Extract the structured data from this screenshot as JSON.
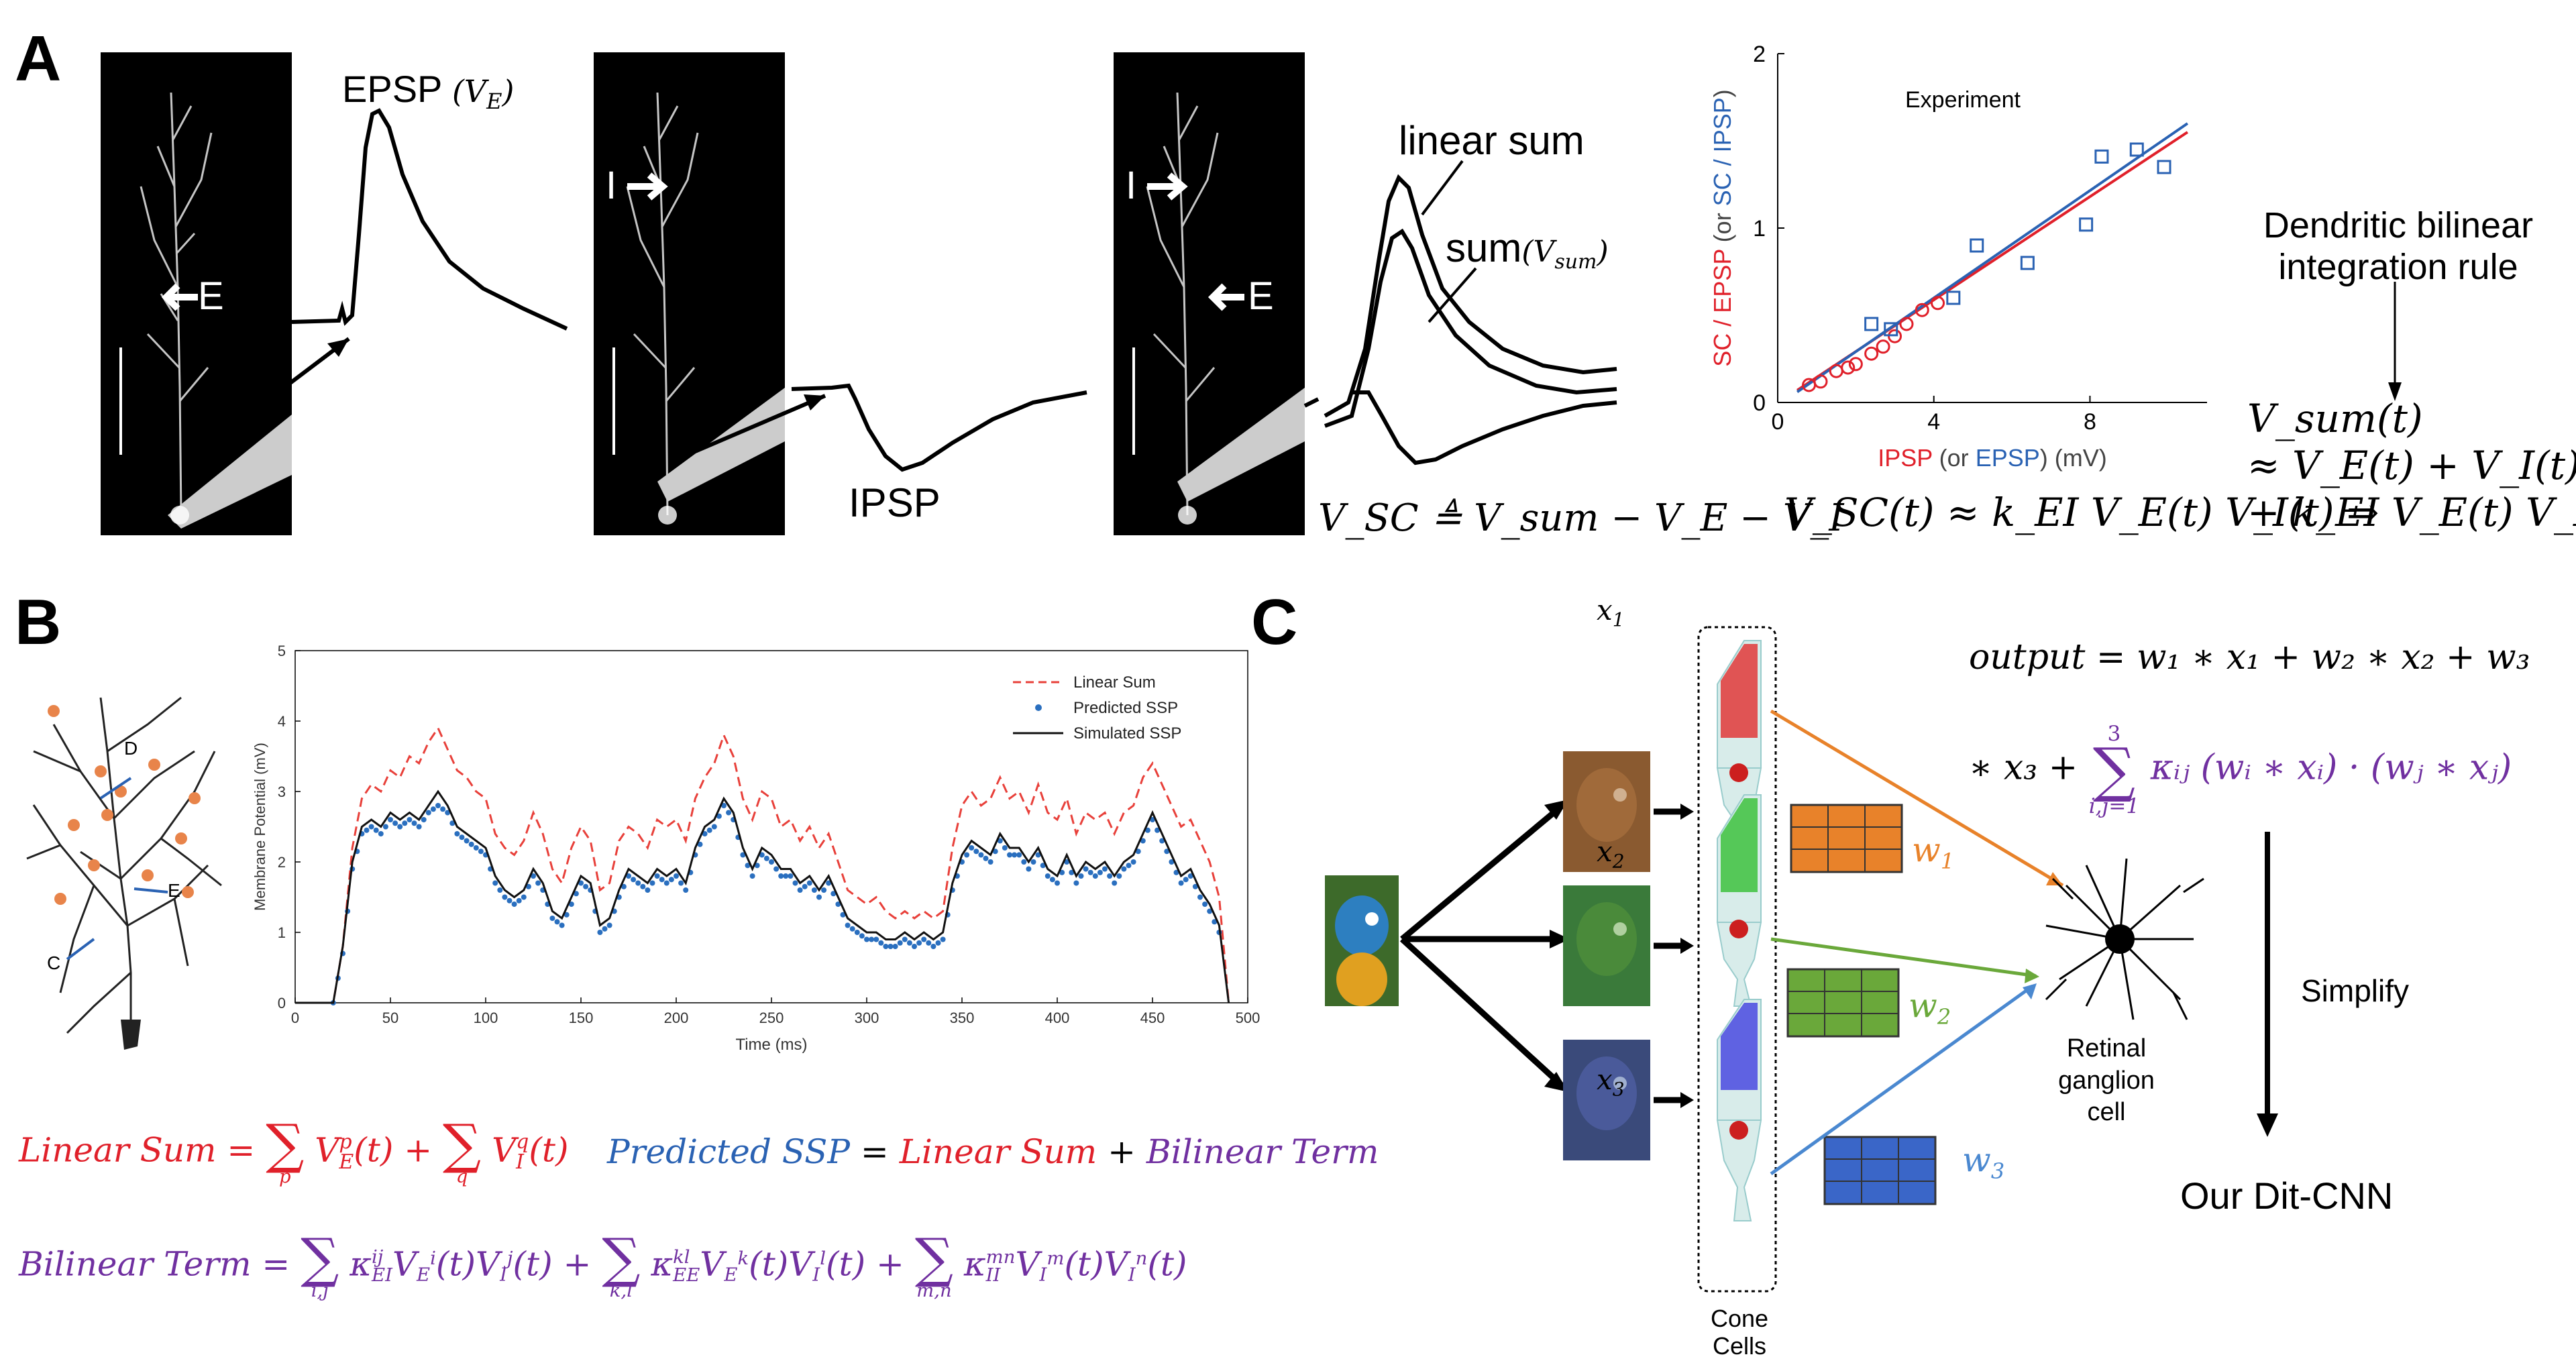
{
  "panel_letters": [
    "A",
    "B",
    "C"
  ],
  "panel_a": {
    "labels": {
      "epsp": "EPSP",
      "epsp_sym": "(V",
      "epsp_sub": "E",
      "epsp_close": ")",
      "ipsp": "IPSP",
      "linear_sum": "linear sum",
      "sum": "sum",
      "sum_sym": "(V",
      "sum_sub": "sum",
      "sum_close": ")",
      "marker_e": "E",
      "marker_i": "I"
    },
    "vsc_def": "V_SC ≜ V_sum − V_E − V_I",
    "vsc_approx": "V_SC(t) ≈ k_EI V_E(t) V_I(t) ⇒",
    "rule_title_1": "Dendritic bilinear",
    "rule_title_2": "integration rule",
    "rule_line1": "V_sum(t)",
    "rule_line2": "≈ V_E(t) + V_I(t)",
    "rule_line3": "+ k_EI V_E(t) V_I(t)",
    "scatter": {
      "title": "Experiment",
      "ylabel_red": "SC / EPSP",
      "ylabel_blue_paren_open": "(or ",
      "ylabel_blue": "SC / IPSP",
      "ylabel_blue_paren_close": ")",
      "xlabel_red": "IPSP",
      "xlabel_blue_paren_open": " (or ",
      "xlabel_blue": "EPSP",
      "xlabel_unit": ")  (mV)",
      "xticks": [
        "0",
        "4",
        "8"
      ],
      "yticks": [
        "0",
        "1",
        "2"
      ]
    }
  },
  "chart_data": [
    {
      "type": "scatter",
      "title": "Experiment",
      "xlabel": "IPSP (or EPSP) (mV)",
      "ylabel": "SC / EPSP (or SC / IPSP)",
      "xlim": [
        0,
        11
      ],
      "ylim": [
        0,
        2
      ],
      "series": [
        {
          "name": "SC / EPSP",
          "color": "#e0202a",
          "marker": "circle",
          "x": [
            0.8,
            1.1,
            1.5,
            1.8,
            2.0,
            2.4,
            2.7,
            3.0,
            3.3,
            3.7,
            4.1
          ],
          "y": [
            0.1,
            0.12,
            0.18,
            0.2,
            0.22,
            0.28,
            0.32,
            0.38,
            0.45,
            0.53,
            0.57
          ]
        },
        {
          "name": "SC / IPSP",
          "color": "#2a62b3",
          "marker": "square",
          "x": [
            2.4,
            2.9,
            4.5,
            5.1,
            6.4,
            7.9,
            8.3,
            9.2,
            9.9
          ],
          "y": [
            0.45,
            0.42,
            0.6,
            0.9,
            0.8,
            1.02,
            1.41,
            1.45,
            1.35
          ]
        }
      ],
      "fits": [
        {
          "color": "#e0202a",
          "x": [
            0.5,
            10.5
          ],
          "y": [
            0.07,
            1.55
          ]
        },
        {
          "color": "#2a62b3",
          "x": [
            0.5,
            10.5
          ],
          "y": [
            0.06,
            1.6
          ]
        }
      ]
    },
    {
      "type": "line",
      "xlabel": "Time (ms)",
      "ylabel": "Membrane Potential (mV)",
      "xlim": [
        0,
        500
      ],
      "ylim": [
        0,
        5
      ],
      "xticks": [
        0,
        50,
        100,
        150,
        200,
        250,
        300,
        350,
        400,
        450,
        500
      ],
      "yticks": [
        0,
        1,
        2,
        3,
        4,
        5
      ],
      "x": [
        0,
        20,
        25,
        30,
        35,
        40,
        45,
        50,
        55,
        60,
        65,
        70,
        75,
        80,
        85,
        90,
        95,
        100,
        105,
        110,
        115,
        120,
        125,
        130,
        135,
        140,
        145,
        150,
        155,
        160,
        165,
        170,
        175,
        180,
        185,
        190,
        195,
        200,
        205,
        210,
        215,
        220,
        225,
        230,
        235,
        240,
        245,
        250,
        255,
        260,
        265,
        270,
        275,
        280,
        285,
        290,
        295,
        300,
        305,
        310,
        315,
        320,
        325,
        330,
        335,
        340,
        345,
        350,
        355,
        360,
        365,
        370,
        375,
        380,
        385,
        390,
        395,
        400,
        405,
        410,
        415,
        420,
        425,
        430,
        435,
        440,
        445,
        450,
        455,
        460,
        465,
        470,
        475,
        480,
        485,
        490
      ],
      "series": [
        {
          "name": "Linear Sum",
          "color": "#e8403a",
          "style": "dashed",
          "values": [
            0,
            0,
            0.8,
            2.2,
            2.9,
            3.1,
            3.0,
            3.3,
            3.2,
            3.5,
            3.4,
            3.7,
            3.9,
            3.6,
            3.3,
            3.2,
            3.0,
            2.9,
            2.4,
            2.2,
            2.1,
            2.3,
            2.7,
            2.4,
            1.9,
            1.7,
            2.2,
            2.5,
            2.3,
            1.6,
            1.7,
            2.3,
            2.5,
            2.4,
            2.2,
            2.6,
            2.5,
            2.6,
            2.3,
            2.9,
            3.2,
            3.4,
            3.8,
            3.5,
            2.9,
            2.6,
            3.0,
            2.9,
            2.5,
            2.6,
            2.3,
            2.5,
            2.2,
            2.4,
            2.0,
            1.6,
            1.5,
            1.4,
            1.5,
            1.3,
            1.2,
            1.3,
            1.2,
            1.3,
            1.2,
            1.3,
            2.2,
            2.8,
            3.0,
            2.8,
            2.9,
            3.2,
            2.9,
            3.0,
            2.7,
            3.1,
            2.7,
            2.6,
            2.9,
            2.4,
            2.7,
            2.6,
            2.7,
            2.4,
            2.7,
            2.8,
            3.2,
            3.4,
            3.1,
            2.8,
            2.5,
            2.6,
            2.3,
            2.0,
            1.5,
            0
          ]
        },
        {
          "name": "Predicted SSP",
          "color": "#2a6fbf",
          "style": "dots",
          "values": [
            0,
            0,
            0.7,
            1.9,
            2.4,
            2.5,
            2.4,
            2.6,
            2.5,
            2.6,
            2.5,
            2.7,
            2.8,
            2.7,
            2.4,
            2.3,
            2.2,
            2.1,
            1.7,
            1.5,
            1.4,
            1.5,
            1.8,
            1.6,
            1.2,
            1.1,
            1.4,
            1.7,
            1.6,
            1.0,
            1.1,
            1.5,
            1.8,
            1.7,
            1.6,
            1.8,
            1.7,
            1.8,
            1.6,
            2.1,
            2.4,
            2.5,
            2.8,
            2.6,
            2.1,
            1.8,
            2.1,
            2.0,
            1.8,
            1.8,
            1.6,
            1.7,
            1.5,
            1.7,
            1.4,
            1.1,
            1.0,
            0.9,
            0.9,
            0.8,
            0.8,
            0.9,
            0.8,
            0.9,
            0.8,
            0.9,
            1.6,
            2.0,
            2.2,
            2.1,
            2.0,
            2.3,
            2.1,
            2.1,
            1.9,
            2.1,
            1.8,
            1.7,
            2.0,
            1.7,
            1.9,
            1.8,
            1.9,
            1.7,
            1.9,
            2.0,
            2.3,
            2.6,
            2.3,
            2.0,
            1.7,
            1.8,
            1.5,
            1.3,
            1.0,
            0
          ]
        },
        {
          "name": "Simulated SSP",
          "color": "#111111",
          "style": "solid",
          "values": [
            0,
            0,
            0.8,
            2.0,
            2.5,
            2.6,
            2.5,
            2.7,
            2.6,
            2.7,
            2.6,
            2.8,
            3.0,
            2.8,
            2.5,
            2.4,
            2.3,
            2.2,
            1.8,
            1.6,
            1.5,
            1.6,
            1.9,
            1.7,
            1.3,
            1.2,
            1.5,
            1.8,
            1.7,
            1.1,
            1.2,
            1.6,
            1.9,
            1.8,
            1.7,
            1.9,
            1.8,
            1.9,
            1.7,
            2.2,
            2.5,
            2.6,
            2.9,
            2.7,
            2.2,
            1.9,
            2.2,
            2.1,
            1.9,
            1.9,
            1.7,
            1.8,
            1.6,
            1.8,
            1.5,
            1.2,
            1.1,
            1.0,
            1.0,
            0.9,
            0.9,
            1.0,
            0.9,
            1.0,
            0.9,
            1.0,
            1.7,
            2.1,
            2.3,
            2.2,
            2.1,
            2.4,
            2.2,
            2.2,
            2.0,
            2.2,
            1.9,
            1.8,
            2.1,
            1.8,
            2.0,
            1.9,
            2.0,
            1.8,
            2.0,
            2.1,
            2.4,
            2.7,
            2.4,
            2.1,
            1.8,
            1.9,
            1.6,
            1.4,
            1.1,
            0
          ]
        }
      ]
    }
  ],
  "panel_b": {
    "neuron_labels": [
      "D",
      "E",
      "C"
    ],
    "legend": [
      "Linear Sum",
      "Predicted SSP",
      "Simulated SSP"
    ],
    "eq1_lhs": "Linear Sum",
    "eq1_eq": "=",
    "eq1_term1": "V",
    "eq1_term1_sup": "p",
    "eq1_term1_sub": "E",
    "eq1_sum1_lim": "p",
    "eq1_term2": "V",
    "eq1_term2_sup": "q",
    "eq1_term2_sub": "I",
    "eq1_sum2_lim": "q",
    "eq1_t": "(t)",
    "eq1_plus": "+",
    "eq2_lhs": "Predicted SSP",
    "eq2_eq": "=",
    "eq2_a": "Linear Sum",
    "eq2_plus": "+",
    "eq2_b": "Bilinear Term",
    "eq3_lhs": "Bilinear Term",
    "eq3_eq": "=",
    "eq3_lims": [
      "i,j",
      "k,l",
      "m,n"
    ],
    "eq3_kappa_sub": [
      "EI",
      "EE",
      "II"
    ],
    "eq3_kappa_sup": [
      "ij",
      "kl",
      "mn"
    ]
  },
  "panel_c": {
    "x_labels": [
      "x",
      "x",
      "x"
    ],
    "x_subs": [
      "1",
      "2",
      "3"
    ],
    "w_labels": [
      "w",
      "w",
      "w"
    ],
    "w_subs": [
      "1",
      "2",
      "3"
    ],
    "w_colors": [
      "#e8822a",
      "#6aa83a",
      "#4a88d0"
    ],
    "cone_label_1": "Cone",
    "cone_label_2": "Cells",
    "ganglion_1": "Retinal",
    "ganglion_2": "ganglion",
    "ganglion_3": "cell",
    "output_line1": "output =  w₁ ∗ x₁ + w₂ ∗ x₂ + w₃",
    "output_line2_a": "∗ x₃ +",
    "output_sum_top": "3",
    "output_sum_bottom": "i,j=1",
    "output_line2_b": "κᵢⱼ (wᵢ ∗ xᵢ) · (wⱼ ∗ xⱼ)",
    "simplify": "Simplify",
    "result": "Our Dit-CNN"
  }
}
